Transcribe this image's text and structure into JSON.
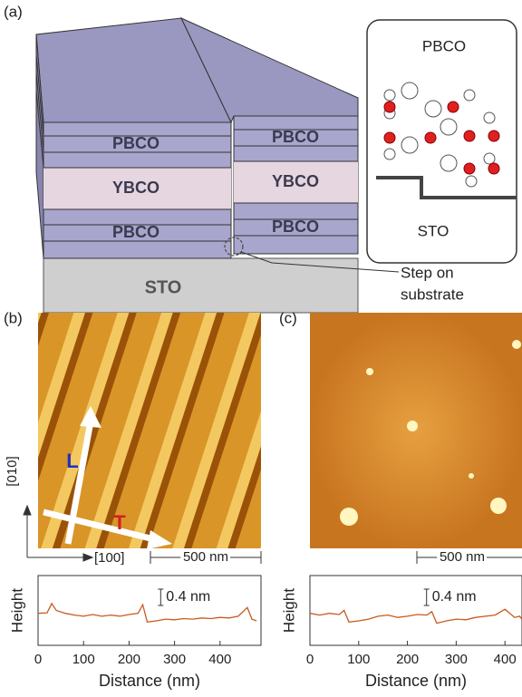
{
  "panel_a": {
    "label": "(a)",
    "layers_left": [
      "PBCO",
      "YBCO",
      "PBCO"
    ],
    "layers_right": [
      "PBCO",
      "YBCO",
      "PBCO"
    ],
    "substrate": "STO",
    "inset": {
      "top": "PBCO",
      "bottom": "STO"
    },
    "annotation": [
      "Step on",
      "substrate"
    ]
  },
  "panel_b": {
    "label": "(b)",
    "arrow_long": "L",
    "arrow_trans": "T",
    "dir_y": "[010]",
    "dir_x": "[100]",
    "scale_bar": "500 nm",
    "profile": {
      "ylabel": "Height",
      "scale": "0.4 nm",
      "xlabel": "Distance (nm)",
      "xlim": [
        0,
        490
      ],
      "ylim": [
        0,
        1.2
      ],
      "xticks": [
        0,
        100,
        200,
        300,
        400
      ],
      "x": [
        0,
        20,
        30,
        40,
        60,
        80,
        100,
        120,
        140,
        160,
        180,
        200,
        220,
        230,
        240,
        260,
        280,
        300,
        320,
        340,
        360,
        380,
        400,
        420,
        440,
        460,
        470,
        480
      ],
      "values": [
        0.55,
        0.56,
        0.72,
        0.6,
        0.55,
        0.52,
        0.5,
        0.53,
        0.5,
        0.52,
        0.5,
        0.53,
        0.55,
        0.7,
        0.4,
        0.42,
        0.45,
        0.44,
        0.46,
        0.45,
        0.47,
        0.46,
        0.48,
        0.47,
        0.5,
        0.65,
        0.45,
        0.42
      ]
    }
  },
  "panel_c": {
    "label": "(c)",
    "scale_bar": "500 nm",
    "profile": {
      "ylabel": "Height",
      "scale": "0.4 nm",
      "xlabel": "Distance (nm)",
      "xlim": [
        0,
        435
      ],
      "ylim": [
        0,
        1.2
      ],
      "xticks": [
        0,
        100,
        200,
        300,
        400
      ],
      "x": [
        0,
        20,
        40,
        60,
        70,
        80,
        100,
        120,
        140,
        160,
        180,
        200,
        220,
        240,
        250,
        260,
        280,
        300,
        320,
        340,
        360,
        380,
        400,
        420,
        430,
        435
      ],
      "values": [
        0.55,
        0.52,
        0.55,
        0.53,
        0.6,
        0.4,
        0.42,
        0.45,
        0.5,
        0.52,
        0.48,
        0.5,
        0.53,
        0.52,
        0.58,
        0.38,
        0.42,
        0.45,
        0.44,
        0.48,
        0.5,
        0.52,
        0.62,
        0.48,
        0.5,
        0.45
      ]
    }
  }
}
